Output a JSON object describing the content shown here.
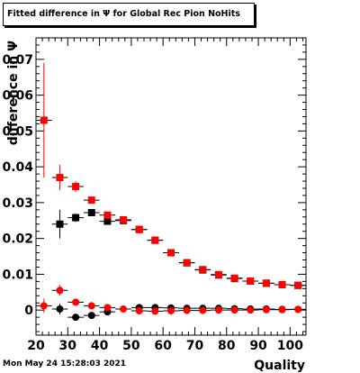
{
  "title": "Fitted difference in  Ψ  for Global Rec Pion NoHits",
  "timestamp": "Mon May 24 15:28:03 2021",
  "chart_data": {
    "type": "scatter",
    "title": "Fitted difference in  Ψ  for Global Rec Pion NoHits",
    "xlabel": "Quality",
    "ylabel": "difference in Ψ",
    "xlim": [
      20,
      105
    ],
    "ylim": [
      -0.007,
      0.076
    ],
    "xticks": [
      20,
      30,
      40,
      50,
      60,
      70,
      80,
      90,
      100
    ],
    "yticks": [
      0,
      0.01,
      0.02,
      0.03,
      0.04,
      0.05,
      0.06,
      0.07
    ],
    "ytick_labels": [
      "0",
      "0.01",
      "0.02",
      "0.03",
      "0.04",
      "0.05",
      "0.06",
      "0.07"
    ],
    "series": [
      {
        "color": "#000000",
        "marker": "square",
        "x": [
          27.5,
          32.5,
          37.5,
          42.5,
          47.5,
          52.5,
          57.5,
          62.5,
          67.5,
          72.5,
          77.5,
          82.5,
          87.5,
          92.5,
          97.5,
          102.5
        ],
        "y": [
          0.024,
          0.0258,
          0.0272,
          0.0248,
          0.025,
          0.0225,
          0.0195,
          0.016,
          0.0132,
          0.0112,
          0.0098,
          0.0088,
          0.0081,
          0.0075,
          0.0071,
          0.0069
        ],
        "yerr": [
          0.004,
          0.0012,
          0.001,
          0.0008,
          0.0006,
          0.0005,
          0.0005,
          0.0005,
          0.0005,
          0.0004,
          0.0004,
          0.0004,
          0.0004,
          0.0004,
          0.0004,
          0.0004
        ]
      },
      {
        "color": "#ff0000",
        "marker": "square",
        "x": [
          22.5,
          27.5,
          32.5,
          37.5,
          42.5,
          47.5,
          52.5,
          57.5,
          62.5,
          67.5,
          72.5,
          77.5,
          82.5,
          87.5,
          92.5,
          97.5,
          102.5
        ],
        "y": [
          0.053,
          0.037,
          0.0345,
          0.0307,
          0.0265,
          0.0252,
          0.0225,
          0.0195,
          0.016,
          0.0132,
          0.0113,
          0.0099,
          0.0089,
          0.0081,
          0.0075,
          0.0071,
          0.0069
        ],
        "yerr": [
          0.016,
          0.0035,
          0.0015,
          0.001,
          0.0008,
          0.0006,
          0.0005,
          0.0005,
          0.0005,
          0.0005,
          0.0004,
          0.0004,
          0.0004,
          0.0004,
          0.0004,
          0.0004,
          0.0004
        ]
      },
      {
        "color": "#000000",
        "marker": "circle",
        "x": [
          27.5,
          32.5,
          37.5,
          42.5,
          52.5,
          57.5,
          62.5,
          67.5,
          72.5,
          77.5,
          82.5,
          87.5,
          92.5,
          97.5,
          102.5
        ],
        "y": [
          0.0003,
          -0.002,
          -0.0015,
          -0.0005,
          0.0007,
          0.0007,
          0.0006,
          0.0005,
          0.0005,
          0.0005,
          0.0004,
          0.0003,
          0.0003,
          0.0002,
          0.0002
        ],
        "yerr": [
          0.0015,
          0.0006,
          0.0005,
          0.0004,
          0.0003,
          0.0003,
          0.0003,
          0.0003,
          0.0003,
          0.0003,
          0.0003,
          0.0003,
          0.0003,
          0.0003,
          0.0003
        ]
      },
      {
        "color": "#ff0000",
        "marker": "circle",
        "x": [
          22.5,
          27.5,
          32.5,
          37.5,
          42.5,
          47.5,
          52.5,
          57.5,
          62.5,
          67.5,
          72.5,
          77.5,
          82.5,
          87.5,
          92.5,
          97.5,
          102.5
        ],
        "y": [
          0.0012,
          0.0055,
          0.0022,
          0.0012,
          0.0007,
          0.0003,
          -0.0002,
          -0.0003,
          -0.0002,
          -0.0001,
          -0.0001,
          0.0,
          0.0,
          0.0,
          0.0001,
          0.0001,
          0.0002
        ],
        "yerr": [
          0.002,
          0.0015,
          0.0006,
          0.0004,
          0.0003,
          0.0003,
          0.0003,
          0.0003,
          0.0003,
          0.0003,
          0.0003,
          0.0003,
          0.0003,
          0.0003,
          0.0003,
          0.0003,
          0.0003
        ]
      }
    ]
  }
}
